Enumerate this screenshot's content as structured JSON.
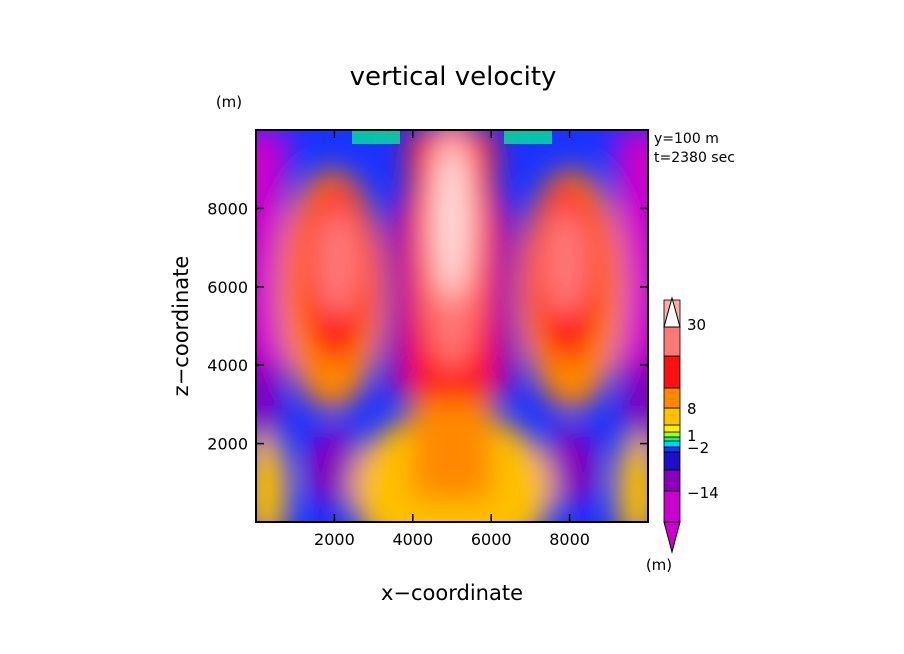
{
  "chart_data": {
    "type": "heatmap",
    "title": "vertical velocity",
    "xlabel": "x−coordinate",
    "ylabel": "z−coordinate",
    "axis_unit": "(m)",
    "colorbar_unit": "(m)",
    "annotations": [
      "y=100 m",
      "t=2380 sec"
    ],
    "xlim": [
      0,
      10000
    ],
    "ylim": [
      0,
      10000
    ],
    "x_ticks": [
      2000,
      4000,
      6000,
      8000
    ],
    "y_ticks": [
      2000,
      4000,
      6000,
      8000
    ],
    "colorbar": {
      "colors": [
        "#cc00cc",
        "#8800bb",
        "#1a10c8",
        "#1a33ff",
        "#00d2ff",
        "#00ff88",
        "#aaff00",
        "#ffee00",
        "#ffc000",
        "#ff8800",
        "#ff1111",
        "#ff7777",
        "#ffaaaa",
        "#ffffff"
      ],
      "labels": [
        {
          "text": "−14",
          "value": -14
        },
        {
          "text": "−2",
          "value": -2
        },
        {
          "text": "1",
          "value": 1
        },
        {
          "text": "8",
          "value": 8
        },
        {
          "text": "30",
          "value": 30
        }
      ]
    }
  }
}
